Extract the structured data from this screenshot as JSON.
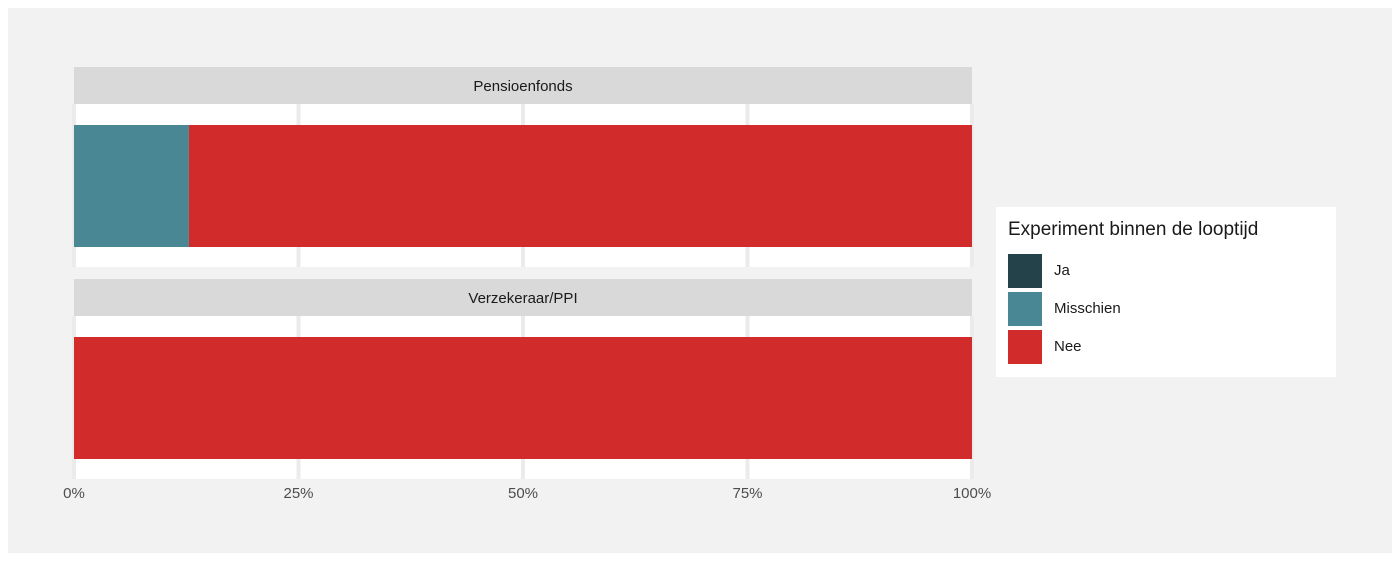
{
  "chart_data": {
    "type": "bar",
    "orientation": "horizontal",
    "stacked": "percent",
    "facets": [
      "Pensioenfonds",
      "Verzekeraar/PPI"
    ],
    "series": [
      {
        "name": "Ja",
        "color": "#24424a",
        "values": [
          0,
          0
        ]
      },
      {
        "name": "Misschien",
        "color": "#4a8794",
        "values": [
          12.8,
          0
        ]
      },
      {
        "name": "Nee",
        "color": "#d22b2b",
        "values": [
          87.2,
          100
        ]
      }
    ],
    "x_ticks": [
      "0%",
      "25%",
      "50%",
      "75%",
      "100%"
    ],
    "xlim": [
      0,
      100
    ],
    "legend": {
      "title": "Experiment binnen de looptijd",
      "position": "right",
      "items": [
        "Ja",
        "Misschien",
        "Nee"
      ]
    },
    "grid": true
  }
}
